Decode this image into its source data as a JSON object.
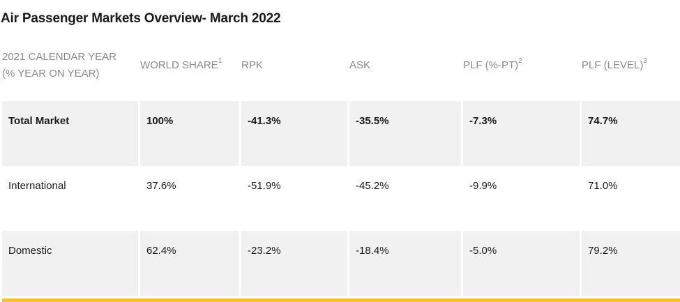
{
  "title": "Air Passenger Markets Overview- March 2022",
  "table": {
    "headers": [
      {
        "line1": "2021 CALENDAR YEAR",
        "line2": "(% YEAR ON YEAR)",
        "sup": ""
      },
      {
        "line1": "WORLD SHARE",
        "line2": "",
        "sup": "1"
      },
      {
        "line1": "RPK",
        "line2": "",
        "sup": ""
      },
      {
        "line1": "ASK",
        "line2": "",
        "sup": ""
      },
      {
        "line1": "PLF (%-PT)",
        "line2": "",
        "sup": "2"
      },
      {
        "line1": "PLF (LEVEL)",
        "line2": "",
        "sup": "3"
      }
    ],
    "rows": [
      {
        "market": "Total Market",
        "world_share": "100%",
        "rpk": "-41.3%",
        "ask": "-35.5%",
        "plf_pt": "-7.3%",
        "plf_level": "74.7%"
      },
      {
        "market": "International",
        "world_share": "37.6%",
        "rpk": "-51.9%",
        "ask": "-45.2%",
        "plf_pt": "-9.9%",
        "plf_level": "71.0%"
      },
      {
        "market": "Domestic",
        "world_share": "62.4%",
        "rpk": "-23.2%",
        "ask": "-18.4%",
        "plf_pt": "-5.0%",
        "plf_level": "79.2%"
      }
    ]
  },
  "colors": {
    "accent_bar": "#f2c231",
    "row_shade": "#f1f1f1",
    "header_text": "#8a8a8a"
  }
}
